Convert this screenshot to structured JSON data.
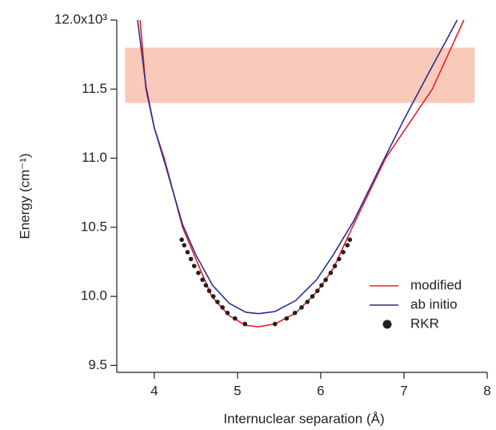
{
  "chart_data": {
    "type": "line",
    "xlabel": "Internuclear separation (Å)",
    "ylabel": "Energy (cm⁻¹)",
    "xlim": [
      3.55,
      8.0
    ],
    "xticks": [
      4,
      5,
      6,
      7,
      8
    ],
    "ylim": [
      9.45,
      12.0
    ],
    "yticks": [
      9.5,
      {
        "value": 10,
        "label": "10.0"
      },
      10.5,
      {
        "value": 11,
        "label": "11.0"
      },
      11.5,
      {
        "value": 12,
        "label": "12.0x10³"
      }
    ],
    "shaded_region": {
      "x": [
        3.65,
        7.85
      ],
      "y": [
        11.4,
        11.8
      ],
      "color": "#f9c9b9"
    },
    "legend": "lower right",
    "series": [
      {
        "name": "modified",
        "color": "#e8202a",
        "kind": "line",
        "x": [
          3.83,
          3.9,
          4.0,
          4.12,
          4.2,
          4.34,
          4.5,
          4.69,
          4.9,
          5.1,
          5.25,
          5.45,
          5.7,
          5.95,
          6.15,
          6.38,
          6.78,
          7.34,
          7.72
        ],
        "values": [
          12.0,
          11.5,
          11.22,
          11.0,
          10.82,
          10.5,
          10.27,
          10.0,
          9.86,
          9.79,
          9.78,
          9.8,
          9.88,
          10.03,
          10.2,
          10.5,
          11.0,
          11.5,
          12.0
        ]
      },
      {
        "name": "ab initio",
        "color": "#2b2f8f",
        "kind": "line",
        "x": [
          3.8,
          3.9,
          4.0,
          4.12,
          4.34,
          4.5,
          4.7,
          4.9,
          5.1,
          5.25,
          5.45,
          5.7,
          5.95,
          6.15,
          6.4,
          6.75,
          7.0,
          7.3,
          7.64
        ],
        "values": [
          12.0,
          11.52,
          11.22,
          10.98,
          10.52,
          10.3,
          10.08,
          9.95,
          9.885,
          9.875,
          9.89,
          9.97,
          10.12,
          10.3,
          10.55,
          10.98,
          11.28,
          11.62,
          12.0
        ]
      },
      {
        "name": "RKR",
        "color": "#231f20",
        "kind": "scatter",
        "x": [
          5.09,
          4.97,
          4.88,
          4.82,
          4.76,
          4.71,
          4.66,
          4.62,
          4.58,
          4.53,
          4.48,
          4.44,
          4.4,
          4.36,
          4.33,
          5.45,
          5.59,
          5.69,
          5.77,
          5.84,
          5.9,
          5.96,
          6.01,
          6.06,
          6.12,
          6.17,
          6.22,
          6.27,
          6.32,
          6.35
        ],
        "values": [
          9.8,
          9.84,
          9.88,
          9.92,
          9.96,
          10.0,
          10.04,
          10.08,
          10.12,
          10.17,
          10.22,
          10.27,
          10.32,
          10.37,
          10.41,
          9.8,
          9.84,
          9.88,
          9.92,
          9.96,
          10.0,
          10.04,
          10.08,
          10.12,
          10.17,
          10.22,
          10.27,
          10.32,
          10.37,
          10.41
        ]
      }
    ]
  }
}
